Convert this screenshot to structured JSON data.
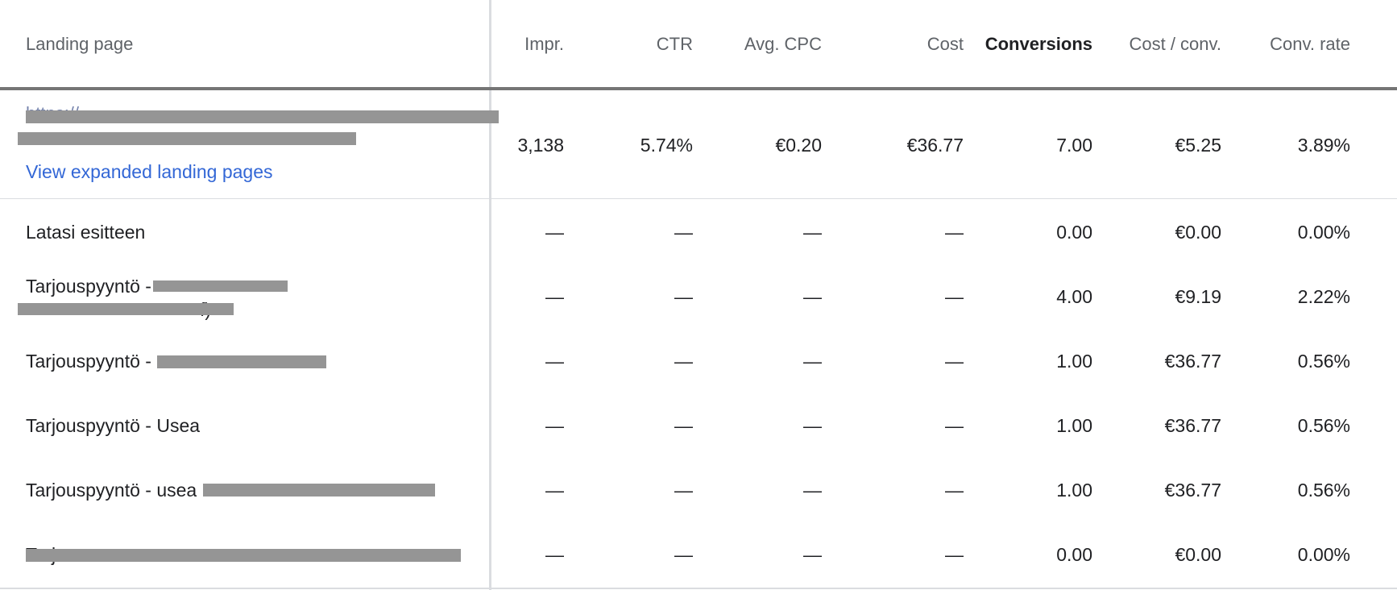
{
  "headers": {
    "landing_page": "Landing page",
    "impr": "Impr.",
    "ctr": "CTR",
    "avg_cpc": "Avg. CPC",
    "cost": "Cost",
    "conversions": "Conversions",
    "cost_per_conv": "Cost / conv.",
    "conv_rate": "Conv. rate"
  },
  "main_row": {
    "url_fragment_1": "https://...",
    "url_fragment_2": "...",
    "link_label": "View expanded landing pages",
    "impr": "3,138",
    "ctr": "5.74%",
    "avg_cpc": "€0.20",
    "cost": "€36.77",
    "conversions": "7.00",
    "cost_per_conv": "€5.25",
    "conv_rate": "3.89%"
  },
  "rows": [
    {
      "name": "Latasi esitteen",
      "impr": "—",
      "ctr": "—",
      "avg_cpc": "—",
      "cost": "—",
      "conversions": "0.00",
      "cost_per_conv": "€0.00",
      "conv_rate": "0.00%"
    },
    {
      "name": "Tarjouspyyntö -",
      "name_cont": "f)",
      "impr": "—",
      "ctr": "—",
      "avg_cpc": "—",
      "cost": "—",
      "conversions": "4.00",
      "cost_per_conv": "€9.19",
      "conv_rate": "2.22%"
    },
    {
      "name": "Tarjouspyyntö -",
      "impr": "—",
      "ctr": "—",
      "avg_cpc": "—",
      "cost": "—",
      "conversions": "1.00",
      "cost_per_conv": "€36.77",
      "conv_rate": "0.56%"
    },
    {
      "name": "Tarjouspyyntö - Usea",
      "impr": "—",
      "ctr": "—",
      "avg_cpc": "—",
      "cost": "—",
      "conversions": "1.00",
      "cost_per_conv": "€36.77",
      "conv_rate": "0.56%"
    },
    {
      "name": "Tarjouspyyntö - usea",
      "impr": "—",
      "ctr": "—",
      "avg_cpc": "—",
      "cost": "—",
      "conversions": "1.00",
      "cost_per_conv": "€36.77",
      "conv_rate": "0.56%"
    },
    {
      "name": "Tarj",
      "impr": "—",
      "ctr": "—",
      "avg_cpc": "—",
      "cost": "—",
      "conversions": "0.00",
      "cost_per_conv": "€0.00",
      "conv_rate": "0.00%"
    }
  ]
}
